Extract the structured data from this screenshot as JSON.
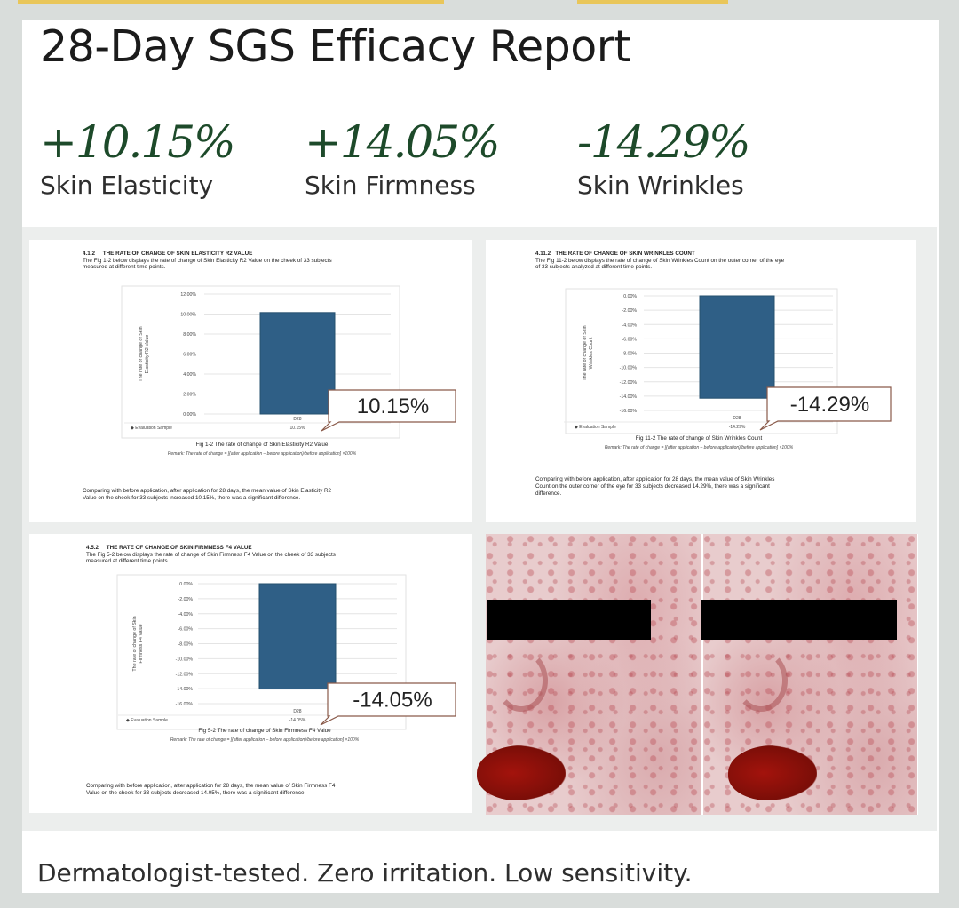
{
  "title": "28-Day SGS Efficacy Report",
  "stats": [
    {
      "value": "+10.15%",
      "label": "Skin Elasticity"
    },
    {
      "value": "+14.05%",
      "label": "Skin Firmness"
    },
    {
      "value": "-14.29%",
      "label": "Skin Wrinkles"
    }
  ],
  "footer": "Dermatologist-tested. Zero irritation. Low sensitivity.",
  "colors": {
    "accent": "#1d4a2a",
    "bar": "#2f5f86"
  },
  "chart_data": [
    {
      "type": "bar",
      "heading": "4.1.2     THE RATE OF CHANGE OF SKIN ELASTICITY R2 VALUE",
      "description": [
        "The Fig 1-2 below displays the rate of change of Skin Elasticity R2 Value on the cheek of 33 subjects",
        "measured at different time points."
      ],
      "ylabel": [
        "The rate of change of Skin",
        "Elasticity R2 Value"
      ],
      "ylim": [
        0,
        12
      ],
      "yticks": [
        "0.00%",
        "2.00%",
        "4.00%",
        "6.00%",
        "8.00%",
        "10.00%",
        "12.00%"
      ],
      "categories": [
        "D28"
      ],
      "values": [
        10.15
      ],
      "value_labels": [
        "10.15%"
      ],
      "legend": "◆ Evaluation Sample",
      "callout": "10.15%",
      "caption": "Fig 1-2 The rate of change of Skin Elasticity R2 Value",
      "remark": "Remark: The rate of change = [(after application – before application)/before application] ×100%",
      "conclusion": [
        "Comparing with before application, after application for 28 days, the mean value of Skin Elasticity R2",
        "Value on the cheek for 33 subjects increased 10.15%, there was a significant difference."
      ]
    },
    {
      "type": "bar",
      "heading": "4.11.2   THE RATE OF CHANGE OF SKIN WRINKLES COUNT",
      "description": [
        "The Fig 11-2 below displays the rate of change of Skin Wrinkles Count on the outer corner of the eye",
        "of 33 subjects analyzed at different time points."
      ],
      "ylabel": [
        "The rate of change of Skin",
        "Wrinkles Count"
      ],
      "ylim": [
        -16,
        0
      ],
      "yticks": [
        "-16.00%",
        "-14.00%",
        "-12.00%",
        "-10.00%",
        "-8.00%",
        "-6.00%",
        "-4.00%",
        "-2.00%",
        "0.00%"
      ],
      "categories": [
        "D28"
      ],
      "values": [
        -14.29
      ],
      "value_labels": [
        "-14.29%"
      ],
      "legend": "◆ Evaluation Sample",
      "callout": "-14.29%",
      "caption": "Fig 11-2 The rate of change of Skin Wrinkles Count",
      "remark": "Remark: The rate of change = [(after application – before application)/before application] ×100%",
      "conclusion": [
        "Comparing with before application, after application for 28 days, the mean value of Skin Wrinkles",
        "Count on the outer corner of the eye for 33 subjects decreased 14.29%, there was a significant",
        "difference."
      ]
    },
    {
      "type": "bar",
      "heading": "4.5.2     THE RATE OF CHANGE OF SKIN FIRMNESS F4 VALUE",
      "description": [
        "The Fig 5-2 below displays the rate of change of Skin Firmness F4 Value on the cheek of 33 subjects",
        "measured at different time points."
      ],
      "ylabel": [
        "The rate of change of Skin",
        "Firmness F4 Value"
      ],
      "ylim": [
        -16,
        0
      ],
      "yticks": [
        "-16.00%",
        "-14.00%",
        "-12.00%",
        "-10.00%",
        "-8.00%",
        "-6.00%",
        "-4.00%",
        "-2.00%",
        "0.00%"
      ],
      "categories": [
        "D28"
      ],
      "values": [
        -14.05
      ],
      "value_labels": [
        "-14.05%"
      ],
      "legend": "◆ Evaluation Sample",
      "callout": "-14.05%",
      "caption": "Fig 5-2 The rate of change of Skin Firmness F4 Value",
      "remark": "Remark: The rate of change = [(after application – before application)/before application] ×100%",
      "conclusion": [
        "Comparing with before application, after application for 28 days, the mean value of Skin Firmness F4",
        "Value on the cheek for 33 subjects decreased 14.05%, there was a significant difference."
      ]
    }
  ]
}
